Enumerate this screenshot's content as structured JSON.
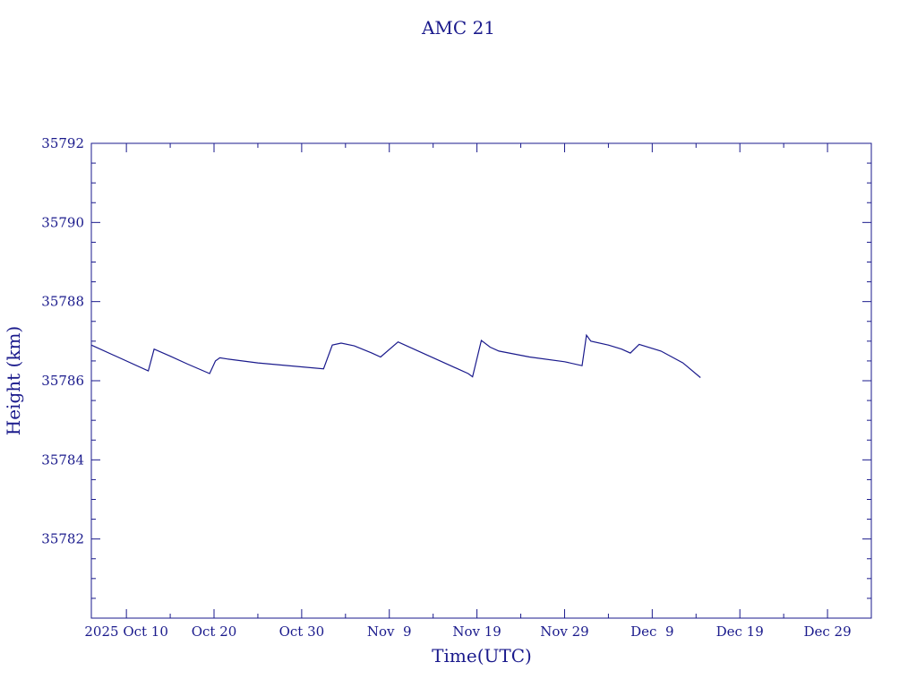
{
  "chart_data": {
    "type": "line",
    "title": "AMC 21",
    "xlabel": "Time(UTC)",
    "ylabel": "Height (km)",
    "ylim": [
      35780,
      35792
    ],
    "xlim": [
      "2025-10-06",
      "2026-01-03"
    ],
    "x_tick_labels": [
      {
        "date": "2025-10-10",
        "label": "2025 Oct 10"
      },
      {
        "date": "2025-10-20",
        "label": "Oct 20"
      },
      {
        "date": "2025-10-30",
        "label": "Oct 30"
      },
      {
        "date": "2025-11-09",
        "label": "Nov  9"
      },
      {
        "date": "2025-11-19",
        "label": "Nov 19"
      },
      {
        "date": "2025-11-29",
        "label": "Nov 29"
      },
      {
        "date": "2025-12-09",
        "label": "Dec  9"
      },
      {
        "date": "2025-12-19",
        "label": "Dec 19"
      },
      {
        "date": "2025-12-29",
        "label": "Dec 29"
      }
    ],
    "y_tick_labels": [
      "35782",
      "35784",
      "35786",
      "35788",
      "35790",
      "35792"
    ],
    "grid": false,
    "color": "#1a1a8c",
    "series": [
      {
        "x": [
          "2025-10-06T00:00",
          "2025-10-12T12:00",
          "2025-10-13T04:00",
          "2025-10-15T00:00",
          "2025-10-17T00:00",
          "2025-10-19T12:00",
          "2025-10-20T04:00",
          "2025-10-20T16:00",
          "2025-10-21T12:00",
          "2025-10-25T00:00",
          "2025-11-01T12:00",
          "2025-11-02T12:00",
          "2025-11-03T12:00",
          "2025-11-05T00:00",
          "2025-11-07T00:00",
          "2025-11-08T00:00",
          "2025-11-10T00:00",
          "2025-11-12T00:00",
          "2025-11-15T00:00",
          "2025-11-18T00:00",
          "2025-11-18T12:00",
          "2025-11-19T12:00",
          "2025-11-20T12:00",
          "2025-11-21T12:00",
          "2025-11-25T00:00",
          "2025-11-29T00:00",
          "2025-12-01T00:00",
          "2025-12-01T12:00",
          "2025-12-02T00:00",
          "2025-12-04T00:00",
          "2025-12-05T12:00",
          "2025-12-06T12:00",
          "2025-12-07T12:00",
          "2025-12-10T00:00",
          "2025-12-12T12:00",
          "2025-12-14T12:00"
        ],
        "y": [
          35786.9,
          35786.25,
          35786.8,
          35786.62,
          35786.42,
          35786.18,
          35786.5,
          35786.58,
          35786.55,
          35786.45,
          35786.3,
          35786.9,
          35786.95,
          35786.88,
          35786.7,
          35786.6,
          35786.98,
          35786.78,
          35786.48,
          35786.18,
          35786.1,
          35787.02,
          35786.85,
          35786.75,
          35786.6,
          35786.48,
          35786.38,
          35787.15,
          35787.0,
          35786.9,
          35786.8,
          35786.7,
          35786.92,
          35786.75,
          35786.45,
          35786.08
        ]
      }
    ]
  }
}
